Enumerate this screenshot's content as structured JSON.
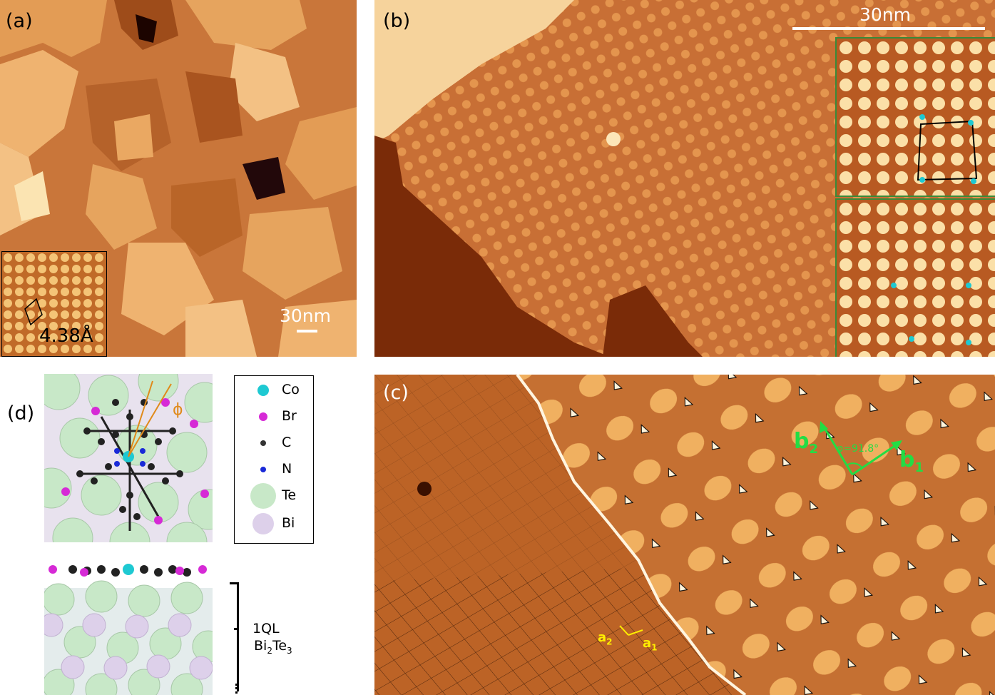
{
  "panel_a": {
    "label": "(a)",
    "scalebar": "30nm",
    "inset_lattice": "4.38Å"
  },
  "panel_b": {
    "label": "(b)",
    "scalebar": "30nm"
  },
  "panel_c": {
    "label": "(c)",
    "angle_label": "φ=91.8°",
    "vec_b1_base": "b",
    "vec_b1_sub": "1",
    "vec_b2_base": "b",
    "vec_b2_sub": "2",
    "vec_a1_base": "a",
    "vec_a1_sub": "1",
    "vec_a2_base": "a",
    "vec_a2_sub": "2"
  },
  "panel_d": {
    "label": "(d)",
    "phi": "ϕ",
    "legend": [
      {
        "symbol": "Co",
        "color": "#1ec9d2"
      },
      {
        "symbol": "Br",
        "color": "#d62ad6"
      },
      {
        "symbol": "C",
        "color": "#333333"
      },
      {
        "symbol": "N",
        "color": "#1a2ad8"
      },
      {
        "symbol": "Te",
        "color": "#c8e8c8"
      },
      {
        "symbol": "Bi",
        "color": "#ddd0ea"
      }
    ],
    "layer_1": "1QL",
    "layer_2_base": "Bi",
    "layer_2_sub1": "2",
    "layer_2_mid": "Te",
    "layer_2_sub2": "3"
  },
  "colors": {
    "accent_green": "#22dd44",
    "accent_yellow": "#ffee00",
    "accent_orange": "#e08a1a"
  }
}
